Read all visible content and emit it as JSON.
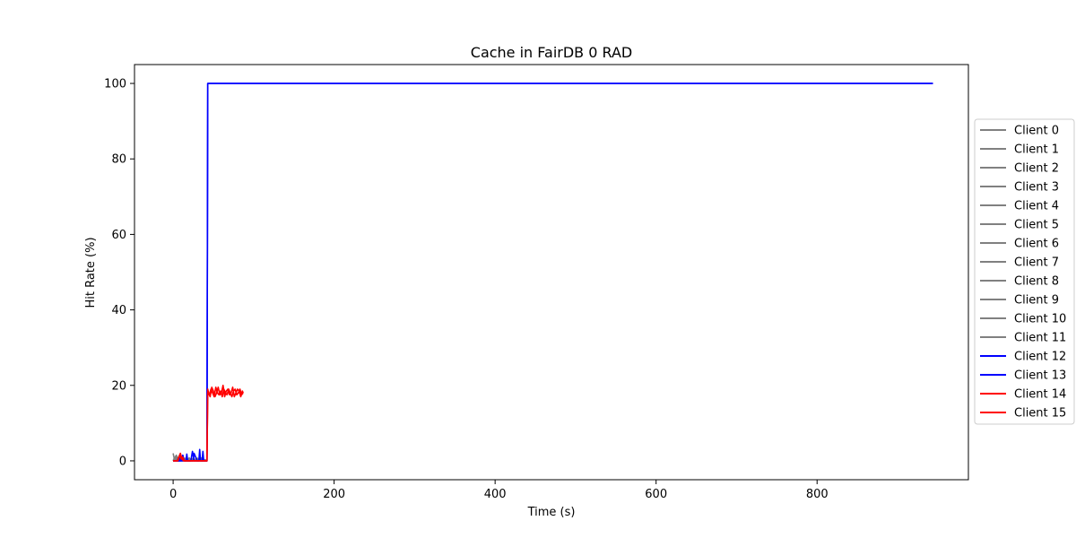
{
  "chart_data": {
    "type": "line",
    "title": "Cache in  FairDB 0 RAD",
    "xlabel": "Time (s)",
    "ylabel": "Hit Rate (%)",
    "xlim": [
      -48,
      988
    ],
    "ylim": [
      -5,
      105
    ],
    "xticks": [
      0,
      200,
      400,
      600,
      800
    ],
    "yticks": [
      0,
      20,
      40,
      60,
      80,
      100
    ],
    "grid": false,
    "legend_position": "right-outside",
    "series": [
      {
        "name": "Client 0",
        "color": "#808080",
        "x": [
          0,
          2,
          4,
          6,
          8,
          10,
          12,
          14,
          16,
          18,
          20,
          22,
          24,
          26,
          28,
          30,
          32,
          34,
          36,
          38,
          40,
          42
        ],
        "y": [
          2,
          0,
          1.5,
          0,
          1,
          0,
          1,
          0,
          0.5,
          0,
          0.8,
          0,
          0.5,
          0,
          0.3,
          0,
          0.5,
          0,
          0.4,
          0,
          0,
          0
        ]
      },
      {
        "name": "Client 1",
        "color": "#808080",
        "x": [
          0,
          3,
          6,
          9,
          12,
          15,
          18,
          21,
          24,
          27,
          30,
          33,
          36,
          39,
          42
        ],
        "y": [
          0,
          1.2,
          0,
          0.8,
          0,
          0.6,
          0,
          0.5,
          0,
          0.4,
          0,
          0.6,
          0,
          0.3,
          0
        ]
      },
      {
        "name": "Client 2",
        "color": "#808080",
        "x": [
          0,
          5,
          10,
          15,
          20,
          25,
          30,
          35,
          40,
          42
        ],
        "y": [
          0,
          1,
          0,
          0.7,
          0,
          0.5,
          0,
          0.8,
          0,
          0
        ]
      },
      {
        "name": "Client 3",
        "color": "#808080",
        "x": [
          0,
          4,
          8,
          12,
          16,
          20,
          24,
          28,
          32,
          36,
          40,
          42
        ],
        "y": [
          0.5,
          0,
          0.8,
          0,
          0.6,
          0,
          0.4,
          0,
          0.5,
          0,
          0.3,
          0
        ]
      },
      {
        "name": "Client 4",
        "color": "#808080",
        "x": [
          0,
          6,
          12,
          18,
          24,
          30,
          36,
          42
        ],
        "y": [
          0,
          0.9,
          0,
          0.6,
          0,
          0.7,
          0,
          0
        ]
      },
      {
        "name": "Client 5",
        "color": "#808080",
        "x": [
          0,
          7,
          14,
          21,
          28,
          35,
          42
        ],
        "y": [
          0.3,
          0,
          0.5,
          0,
          0.4,
          0,
          0
        ]
      },
      {
        "name": "Client 6",
        "color": "#808080",
        "x": [
          0,
          5,
          10,
          15,
          20,
          25,
          30,
          35,
          40,
          42
        ],
        "y": [
          0,
          0.6,
          0,
          0.5,
          0,
          0.4,
          0,
          0.3,
          0,
          0
        ]
      },
      {
        "name": "Client 7",
        "color": "#808080",
        "x": [
          0,
          8,
          16,
          24,
          32,
          40,
          42
        ],
        "y": [
          0,
          0.5,
          0,
          0.6,
          0,
          0.2,
          0
        ]
      },
      {
        "name": "Client 8",
        "color": "#808080",
        "x": [
          0,
          9,
          18,
          27,
          36,
          42
        ],
        "y": [
          0.4,
          0,
          0.3,
          0,
          0.4,
          0
        ]
      },
      {
        "name": "Client 9",
        "color": "#808080",
        "x": [
          0,
          10,
          20,
          30,
          40,
          42
        ],
        "y": [
          0,
          0.4,
          0,
          0.5,
          0,
          0
        ]
      },
      {
        "name": "Client 10",
        "color": "#808080",
        "x": [
          0,
          6,
          12,
          18,
          24,
          30,
          36,
          42
        ],
        "y": [
          0.2,
          0,
          0.4,
          0,
          0.3,
          0,
          0.2,
          0
        ]
      },
      {
        "name": "Client 11",
        "color": "#808080",
        "x": [
          0,
          11,
          22,
          33,
          42
        ],
        "y": [
          0,
          0.3,
          0,
          0.4,
          0
        ]
      },
      {
        "name": "Client 12",
        "color": "#0000ff",
        "x": [
          0,
          10,
          12,
          14,
          20,
          22,
          24,
          26,
          27,
          28,
          30,
          32,
          33,
          34,
          36,
          38,
          40,
          42,
          43,
          944
        ],
        "y": [
          0,
          0,
          1.5,
          0,
          0,
          0,
          2.5,
          0,
          0,
          0,
          0,
          0,
          3,
          0,
          0,
          0,
          0,
          0,
          100,
          100
        ]
      },
      {
        "name": "Client 13",
        "color": "#0000ff",
        "x": [
          0,
          8,
          9,
          10,
          16,
          17,
          18,
          25,
          26,
          30,
          36,
          37,
          38,
          42,
          43,
          944
        ],
        "y": [
          0,
          0,
          1.2,
          0,
          0,
          1.8,
          0,
          0,
          2,
          0,
          0,
          2.5,
          0,
          0,
          100,
          100
        ]
      },
      {
        "name": "Client 15",
        "color": "#ff0000",
        "x": [
          0,
          6,
          8,
          10,
          12,
          14,
          42,
          43,
          45,
          47,
          49,
          51,
          53,
          55,
          57,
          59,
          61,
          63,
          65,
          67,
          69,
          71,
          73,
          75,
          77,
          79,
          81,
          83,
          85,
          87
        ],
        "y": [
          0,
          0,
          1.5,
          0.5,
          1,
          0,
          0,
          18,
          17.5,
          19,
          18,
          17,
          19.5,
          18,
          17.5,
          18.5,
          17,
          19,
          18,
          17.5,
          19,
          18,
          17,
          18.5,
          19,
          17.5,
          18,
          19,
          17.5,
          18
        ]
      },
      {
        "name": "Client 14",
        "color": "#ff0000",
        "x": [
          0,
          5,
          7,
          9,
          11,
          13,
          42,
          43,
          44,
          46,
          48,
          50,
          52,
          54,
          56,
          58,
          60,
          62,
          64,
          66,
          68,
          70,
          72,
          74,
          76,
          78,
          80,
          82,
          84,
          86,
          87
        ],
        "y": [
          0,
          0,
          1,
          2,
          0.5,
          0,
          0,
          19,
          18,
          17,
          19.5,
          18.5,
          17,
          18,
          19.5,
          17.5,
          18,
          20,
          17,
          18.5,
          19,
          17.5,
          18,
          19.5,
          17,
          18,
          19,
          18.5,
          17,
          18.5,
          18
        ]
      }
    ],
    "legend": [
      {
        "name": "Client 0",
        "color": "#808080"
      },
      {
        "name": "Client 1",
        "color": "#808080"
      },
      {
        "name": "Client 2",
        "color": "#808080"
      },
      {
        "name": "Client 3",
        "color": "#808080"
      },
      {
        "name": "Client 4",
        "color": "#808080"
      },
      {
        "name": "Client 5",
        "color": "#808080"
      },
      {
        "name": "Client 6",
        "color": "#808080"
      },
      {
        "name": "Client 7",
        "color": "#808080"
      },
      {
        "name": "Client 8",
        "color": "#808080"
      },
      {
        "name": "Client 9",
        "color": "#808080"
      },
      {
        "name": "Client 10",
        "color": "#808080"
      },
      {
        "name": "Client 11",
        "color": "#808080"
      },
      {
        "name": "Client 12",
        "color": "#0000ff"
      },
      {
        "name": "Client 13",
        "color": "#0000ff"
      },
      {
        "name": "Client 14",
        "color": "#ff0000"
      },
      {
        "name": "Client 15",
        "color": "#ff0000"
      }
    ]
  }
}
